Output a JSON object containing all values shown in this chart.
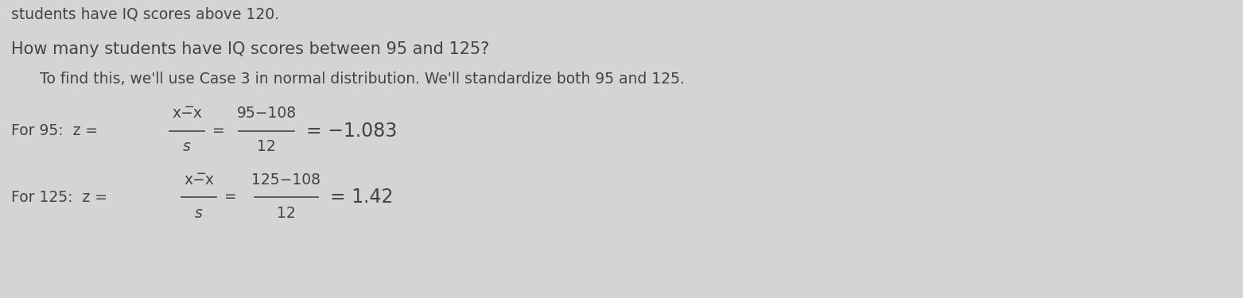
{
  "background_color": "#d4d4d4",
  "top_text": "students have IQ scores above 120.",
  "question": "How many students have IQ scores between 95 and 125?",
  "intro_text": "To find this, we'll use Case 3 in normal distribution. We'll standardize both 95 and 125.",
  "text_color": "#444444",
  "font_size_top": 13.5,
  "font_size_question": 15,
  "font_size_intro": 13.5,
  "font_size_formula": 13.5,
  "font_size_result": 17,
  "fig_width": 15.63,
  "fig_height": 3.75,
  "dpi": 100
}
